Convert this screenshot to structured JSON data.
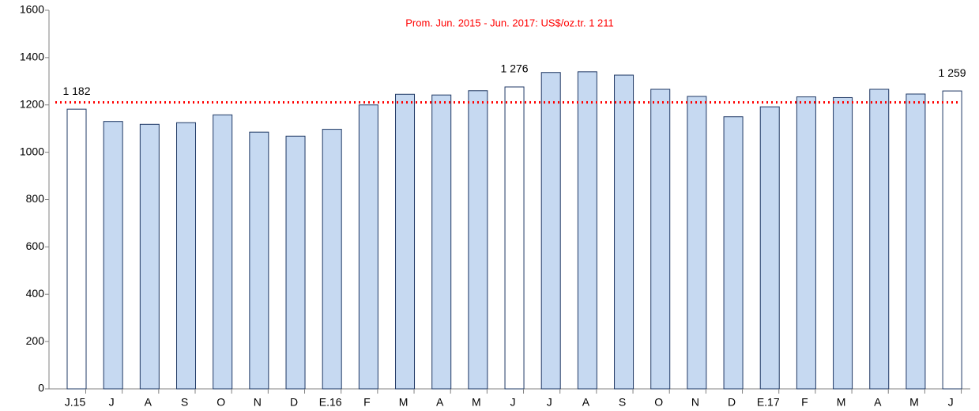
{
  "chart_data": {
    "type": "bar",
    "annotation": "Prom. Jun. 2015 - Jun. 2017: US$/oz.tr. 1 211",
    "average": 1211,
    "average_color": "#ff0000",
    "categories": [
      "J.15",
      "J",
      "A",
      "S",
      "O",
      "N",
      "D",
      "E.16",
      "F",
      "M",
      "A",
      "M",
      "J",
      "J",
      "A",
      "S",
      "O",
      "N",
      "D",
      "E.17",
      "F",
      "M",
      "A",
      "M",
      "J"
    ],
    "values": [
      1182,
      1130,
      1118,
      1125,
      1158,
      1085,
      1068,
      1097,
      1200,
      1245,
      1242,
      1260,
      1276,
      1337,
      1340,
      1326,
      1266,
      1236,
      1150,
      1192,
      1234,
      1231,
      1266,
      1246,
      1259
    ],
    "value_labels": [
      "1 182",
      null,
      null,
      null,
      null,
      null,
      null,
      null,
      null,
      null,
      null,
      null,
      "1 276",
      null,
      null,
      null,
      null,
      null,
      null,
      null,
      null,
      null,
      null,
      null,
      "1 259"
    ],
    "colors": [
      "#ffffff",
      "#c6d9f1",
      "#c6d9f1",
      "#c6d9f1",
      "#c6d9f1",
      "#c6d9f1",
      "#c6d9f1",
      "#c6d9f1",
      "#c6d9f1",
      "#c6d9f1",
      "#c6d9f1",
      "#c6d9f1",
      "#ffffff",
      "#c6d9f1",
      "#c6d9f1",
      "#c6d9f1",
      "#c6d9f1",
      "#c6d9f1",
      "#c6d9f1",
      "#c6d9f1",
      "#c6d9f1",
      "#c6d9f1",
      "#c6d9f1",
      "#c6d9f1",
      "#ffffff"
    ],
    "edge_color": "#1f3864",
    "ylim": [
      0,
      1600
    ],
    "yticks": [
      0,
      200,
      400,
      600,
      800,
      1000,
      1200,
      1400,
      1600
    ]
  }
}
